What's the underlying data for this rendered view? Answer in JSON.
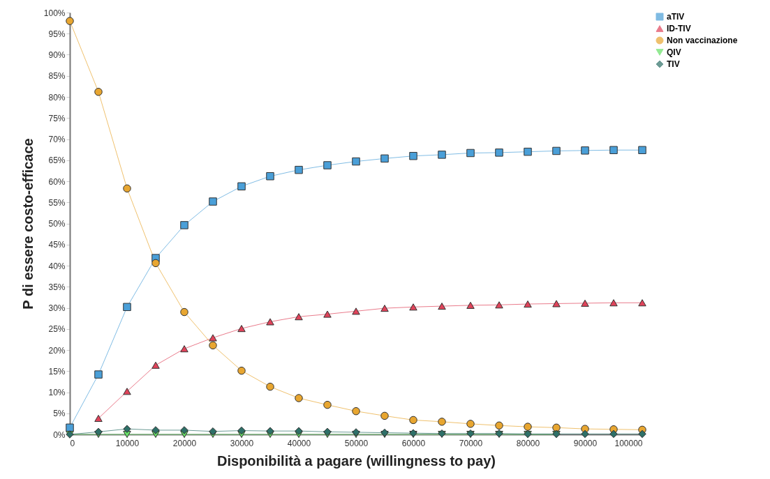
{
  "chart_data": {
    "type": "line",
    "xlabel": "Disponibilità a pagare (willingness to pay)",
    "ylabel": "P di essere costo-efficace",
    "x": [
      0,
      5000,
      10000,
      15000,
      20000,
      25000,
      30000,
      35000,
      40000,
      45000,
      50000,
      55000,
      60000,
      65000,
      70000,
      75000,
      80000,
      85000,
      90000,
      95000,
      100000
    ],
    "series": [
      {
        "name": "aTIV",
        "color": "#4a9fd8",
        "marker": "square",
        "values": [
          1.6,
          14.2,
          30.2,
          41.8,
          49.6,
          55.2,
          58.8,
          61.2,
          62.7,
          63.8,
          64.7,
          65.4,
          66.0,
          66.3,
          66.7,
          66.8,
          67.0,
          67.2,
          67.3,
          67.4,
          67.4
        ]
      },
      {
        "name": "ID-TIV",
        "color": "#e0435a",
        "marker": "triangle",
        "values": [
          null,
          3.8,
          10.2,
          16.4,
          20.3,
          22.9,
          25.1,
          26.7,
          27.9,
          28.5,
          29.2,
          29.9,
          30.2,
          30.4,
          30.6,
          30.7,
          30.9,
          31.0,
          31.1,
          31.2,
          31.2
        ]
      },
      {
        "name": "Non vaccinazione",
        "color": "#e8a630",
        "marker": "circle",
        "values": [
          98.0,
          81.2,
          58.3,
          40.6,
          29.0,
          21.1,
          15.1,
          11.3,
          8.6,
          7.0,
          5.5,
          4.4,
          3.4,
          3.0,
          2.5,
          2.1,
          1.8,
          1.6,
          1.3,
          1.2,
          1.1
        ]
      },
      {
        "name": "QIV",
        "color": "#66e066",
        "marker": "triangle-down",
        "values": [
          0,
          0,
          0,
          0,
          0,
          0,
          0,
          0,
          0,
          0,
          0,
          0,
          0,
          0,
          0,
          0,
          0,
          0,
          null,
          null,
          null
        ]
      },
      {
        "name": "TIV",
        "color": "#2e7068",
        "marker": "diamond",
        "values": [
          0,
          0.6,
          1.3,
          1.0,
          1.0,
          0.7,
          0.9,
          0.8,
          0.8,
          0.6,
          0.5,
          0.4,
          0.3,
          0.2,
          0.2,
          0.2,
          0.1,
          0.1,
          0.1,
          0.1,
          0.1
        ]
      }
    ],
    "xlim": [
      0,
      100000
    ],
    "xticks": [
      0,
      10000,
      20000,
      30000,
      40000,
      50000,
      60000,
      70000,
      80000,
      90000,
      100000
    ],
    "ylim": [
      0,
      100
    ],
    "yticks": [
      {
        "value": 0,
        "label": "0%"
      },
      {
        "value": 5,
        "label": "5%"
      },
      {
        "value": 10,
        "label": "10%"
      },
      {
        "value": 15,
        "label": "15%"
      },
      {
        "value": 20,
        "label": "20%"
      },
      {
        "value": 25,
        "label": "25%"
      },
      {
        "value": 30,
        "label": "30%"
      },
      {
        "value": 35,
        "label": "35%"
      },
      {
        "value": 40,
        "label": "40%"
      },
      {
        "value": 45,
        "label": "45%"
      },
      {
        "value": 50,
        "label": "50%"
      },
      {
        "value": 55,
        "label": "55%"
      },
      {
        "value": 60,
        "label": "60%"
      },
      {
        "value": 65,
        "label": "65%"
      },
      {
        "value": 70,
        "label": "70%"
      },
      {
        "value": 75,
        "label": "75%"
      },
      {
        "value": 80,
        "label": "80%"
      },
      {
        "value": 85,
        "label": "85%"
      },
      {
        "value": 90,
        "label": "90%"
      },
      {
        "value": 95,
        "label": "95%"
      },
      {
        "value": 100,
        "label": "100%"
      }
    ],
    "grid": false,
    "legend": "right",
    "line_style": "solid"
  }
}
